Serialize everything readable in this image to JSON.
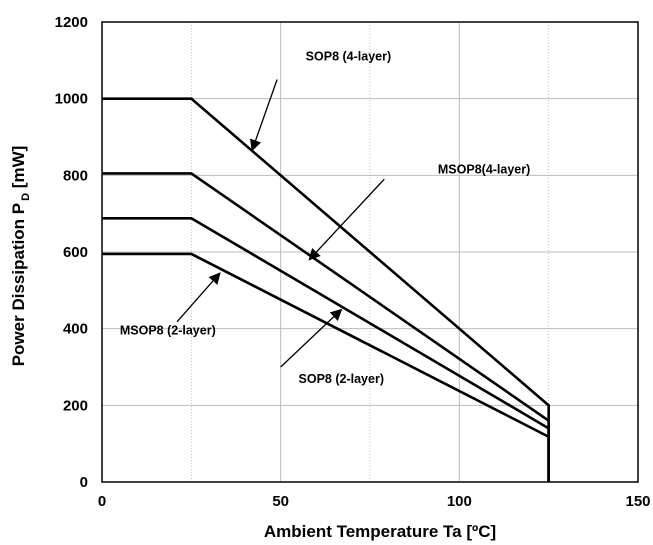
{
  "chart_data": {
    "type": "line",
    "xlabel": "Ambient Temperature Ta [ºC]",
    "ylabel_main": "Power Dissipation P",
    "ylabel_sub": "D",
    "ylabel_unit": " [mW]",
    "xlim": [
      0,
      150
    ],
    "ylim": [
      0,
      1200
    ],
    "xticks": [
      0,
      50,
      100,
      150
    ],
    "yticks": [
      0,
      200,
      400,
      600,
      800,
      1000,
      1200
    ],
    "grid": true,
    "series": [
      {
        "name": "SOP8 (4-layer)",
        "x": [
          0,
          25,
          125,
          125
        ],
        "y": [
          1000,
          1000,
          200,
          0
        ]
      },
      {
        "name": "MSOP8(4-layer)",
        "x": [
          0,
          25,
          125,
          125
        ],
        "y": [
          805,
          805,
          160,
          0
        ]
      },
      {
        "name": "SOP8 (2-layer)",
        "x": [
          0,
          25,
          125,
          125
        ],
        "y": [
          688,
          688,
          140,
          0
        ]
      },
      {
        "name": "MSOP8 (2-layer)",
        "x": [
          0,
          25,
          125,
          125
        ],
        "y": [
          595,
          595,
          118,
          0
        ]
      }
    ],
    "annotations": [
      {
        "series_index": 0,
        "text": "SOP8 (4-layer)",
        "label_at": [
          57,
          1100
        ],
        "arrow_from": [
          49,
          1050
        ],
        "arrow_to": [
          42,
          865
        ]
      },
      {
        "series_index": 1,
        "text": "MSOP8(4-layer)",
        "label_at": [
          94,
          805
        ],
        "arrow_from": [
          79,
          790
        ],
        "arrow_to": [
          58,
          580
        ]
      },
      {
        "series_index": 2,
        "text": "SOP8 (2-layer)",
        "label_at": [
          55,
          258
        ],
        "arrow_from": [
          50,
          300
        ],
        "arrow_to": [
          67,
          450
        ]
      },
      {
        "series_index": 3,
        "text": "MSOP8 (2-layer)",
        "label_at": [
          5,
          385
        ],
        "arrow_from": [
          21,
          418
        ],
        "arrow_to": [
          33,
          545
        ]
      }
    ]
  }
}
